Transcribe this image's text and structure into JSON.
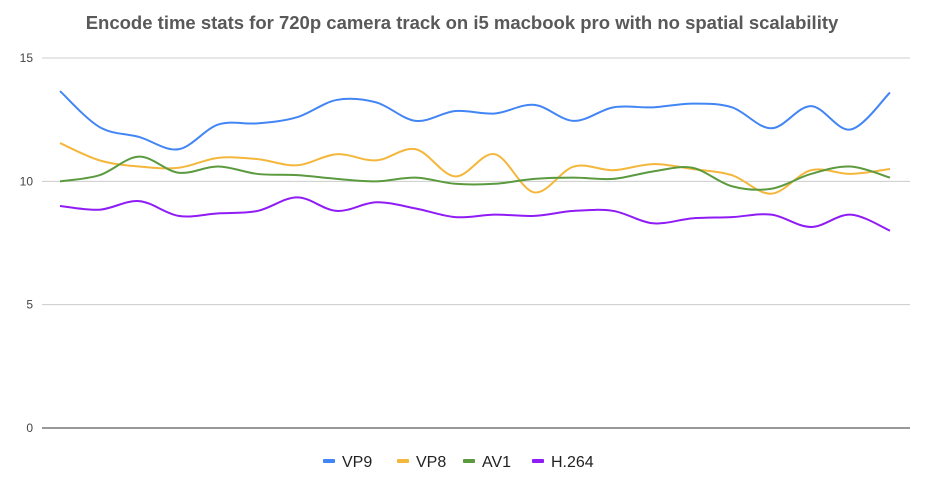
{
  "chart_data": {
    "type": "line",
    "title": "Encode time stats for 720p camera track on i5 macbook pro with no spatial scalability",
    "xlabel": "",
    "ylabel": "",
    "ylim": [
      0,
      15
    ],
    "yticks": [
      0,
      5,
      10,
      15
    ],
    "grid": true,
    "legend_position": "bottom",
    "x": [
      1,
      2,
      3,
      4,
      5,
      6,
      7,
      8,
      9,
      10,
      11,
      12,
      13,
      14,
      15,
      16,
      17,
      18,
      19,
      20,
      21,
      22
    ],
    "series": [
      {
        "name": "VP9",
        "color": "#4285f4",
        "values": [
          13.66,
          12.2,
          11.8,
          11.3,
          12.3,
          12.35,
          12.6,
          13.3,
          13.2,
          12.45,
          12.85,
          12.75,
          13.1,
          12.45,
          13.0,
          13.0,
          13.15,
          13.0,
          12.15,
          13.05,
          12.1,
          13.6
        ]
      },
      {
        "name": "VP8",
        "color": "#f4b73b",
        "values": [
          11.55,
          10.85,
          10.6,
          10.55,
          10.95,
          10.9,
          10.65,
          11.1,
          10.85,
          11.3,
          10.2,
          11.1,
          9.55,
          10.6,
          10.45,
          10.7,
          10.5,
          10.25,
          9.5,
          10.45,
          10.3,
          10.5
        ]
      },
      {
        "name": "AV1",
        "color": "#5b9a3f",
        "values": [
          10.0,
          10.25,
          11.0,
          10.35,
          10.6,
          10.3,
          10.25,
          10.1,
          10.0,
          10.15,
          9.9,
          9.9,
          10.1,
          10.15,
          10.1,
          10.4,
          10.55,
          9.8,
          9.7,
          10.3,
          10.6,
          10.15
        ]
      },
      {
        "name": "H.264",
        "color": "#8f1cf5",
        "values": [
          9.0,
          8.85,
          9.2,
          8.6,
          8.7,
          8.8,
          9.35,
          8.8,
          9.15,
          8.9,
          8.55,
          8.65,
          8.6,
          8.8,
          8.8,
          8.3,
          8.5,
          8.55,
          8.65,
          8.15,
          8.65,
          8.0
        ]
      }
    ]
  }
}
